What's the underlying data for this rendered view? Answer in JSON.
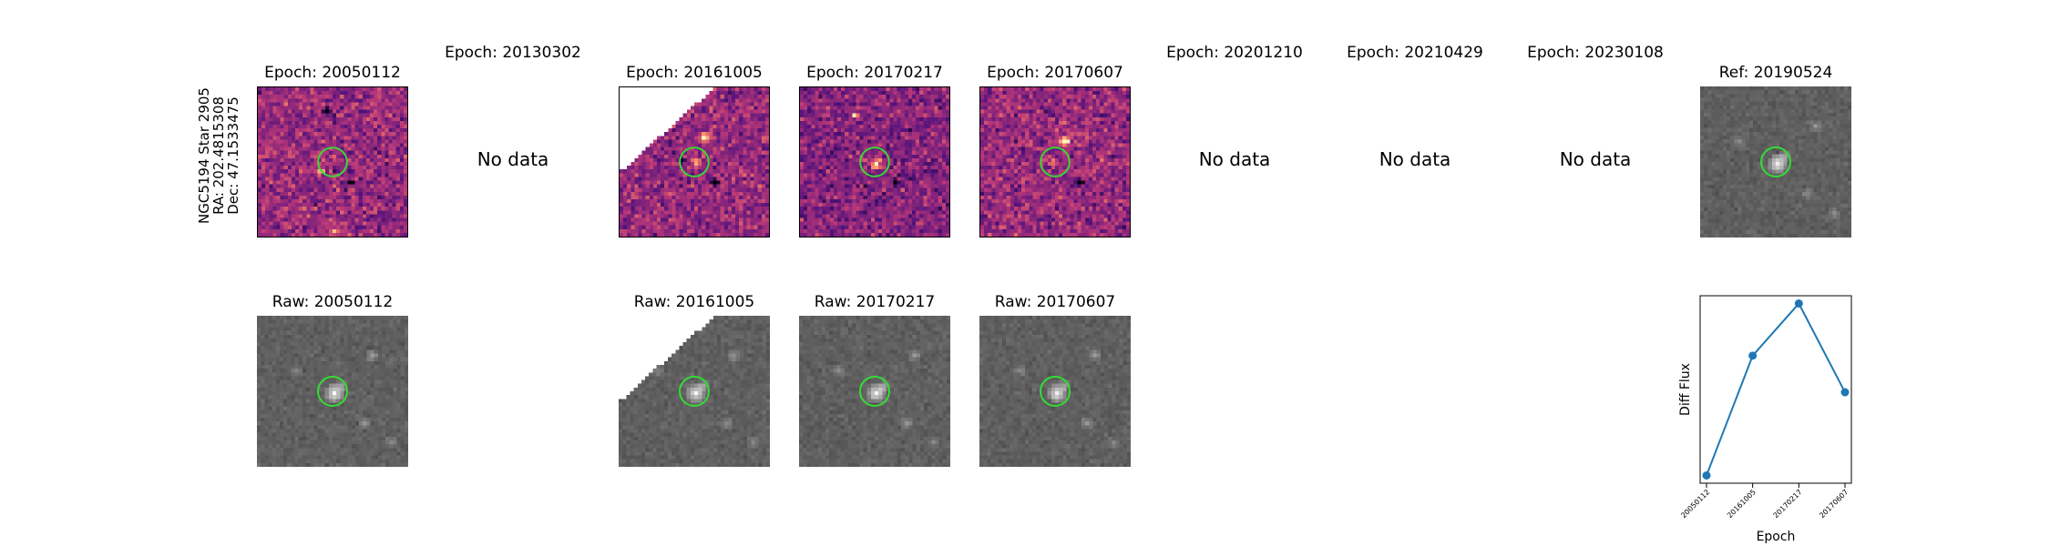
{
  "star": {
    "name": "NGC5194 Star 2905",
    "ra": "RA: 202.4815308",
    "dec": "Dec: 47.1533475"
  },
  "diff_row": [
    {
      "title": "Epoch: 20050112",
      "has_data": true
    },
    {
      "title": "Epoch: 20130302",
      "has_data": false,
      "no_data_label": "No data"
    },
    {
      "title": "Epoch: 20161005",
      "has_data": true
    },
    {
      "title": "Epoch: 20170217",
      "has_data": true
    },
    {
      "title": "Epoch: 20170607",
      "has_data": true
    },
    {
      "title": "Epoch: 20201210",
      "has_data": false,
      "no_data_label": "No data"
    },
    {
      "title": "Epoch: 20210429",
      "has_data": false,
      "no_data_label": "No data"
    },
    {
      "title": "Epoch: 20230108",
      "has_data": false,
      "no_data_label": "No data"
    }
  ],
  "reference": {
    "title": "Ref: 20190524"
  },
  "raw_row": [
    {
      "title": "Raw: 20050112"
    },
    {
      "title": "Raw: 20161005"
    },
    {
      "title": "Raw: 20170217"
    },
    {
      "title": "Raw: 20170607"
    }
  ],
  "colors": {
    "circle": "#33dd33",
    "line": "#1f77b4"
  },
  "chart_data": {
    "type": "line",
    "categories": [
      "20050112",
      "20161005",
      "20170217",
      "20170607"
    ],
    "series": [
      {
        "values": [
          0.0,
          1.08,
          1.55,
          0.75
        ]
      }
    ],
    "xlabel": "Epoch",
    "ylabel": "Diff Flux",
    "yticks_shown": false,
    "ylim": [
      -0.07,
      1.62
    ],
    "grid": false
  }
}
